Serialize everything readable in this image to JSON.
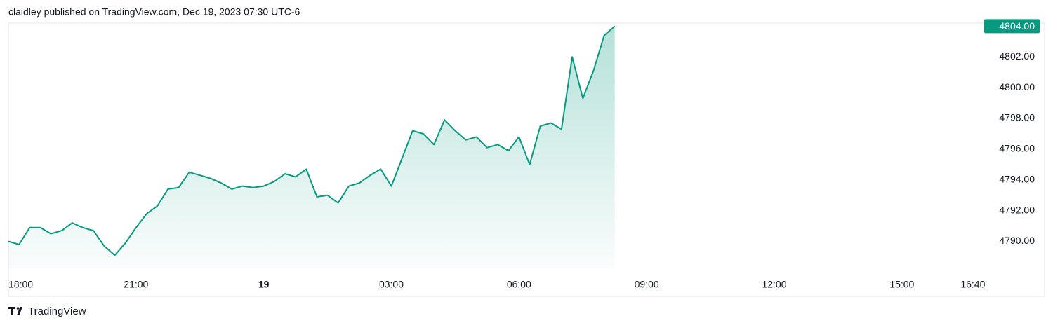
{
  "chart_data": {
    "type": "area",
    "title": "claidley published on TradingView.com, Dec 19, 2023 07:30 UTC-6",
    "brand": "TradingView",
    "color": "#089981",
    "x": [
      0,
      0.25,
      0.5,
      0.75,
      1,
      1.25,
      1.5,
      1.75,
      2,
      2.25,
      2.5,
      2.75,
      3,
      3.25,
      3.5,
      3.75,
      4,
      4.25,
      4.5,
      4.75,
      5,
      5.25,
      5.5,
      5.75,
      6,
      6.25,
      6.5,
      6.75,
      7,
      7.25,
      7.5,
      7.75,
      8,
      8.25,
      8.5,
      8.75,
      9,
      9.25,
      9.5,
      9.75,
      10,
      10.25,
      10.5,
      10.75,
      11,
      11.25,
      11.5,
      11.75,
      12,
      12.25,
      12.5,
      12.75,
      13,
      13.25,
      13.5,
      13.75,
      14,
      14.25
    ],
    "values": [
      4790.0,
      4789.8,
      4790.9,
      4790.9,
      4790.5,
      4790.7,
      4791.2,
      4790.9,
      4790.7,
      4789.7,
      4789.1,
      4789.9,
      4790.9,
      4791.8,
      4792.3,
      4793.4,
      4793.5,
      4794.5,
      4794.3,
      4794.1,
      4793.8,
      4793.4,
      4793.6,
      4793.5,
      4793.6,
      4793.9,
      4794.4,
      4794.2,
      4794.7,
      4792.9,
      4793.0,
      4792.5,
      4793.6,
      4793.8,
      4794.3,
      4794.7,
      4793.6,
      4795.4,
      4797.2,
      4797.0,
      4796.3,
      4797.9,
      4797.2,
      4796.6,
      4796.8,
      4796.1,
      4796.3,
      4795.9,
      4796.8,
      4795.0,
      4797.5,
      4797.7,
      4797.3,
      4802.0,
      4799.3,
      4801.1,
      4803.4,
      4804.0
    ],
    "last_price": {
      "value": 4804,
      "label": "4804.00"
    },
    "xlim": [
      0,
      22.9
    ],
    "xticks": [
      {
        "value": 0,
        "label": "18:00"
      },
      {
        "value": 3,
        "label": "21:00"
      },
      {
        "value": 6,
        "label": "19"
      },
      {
        "value": 9,
        "label": "03:00"
      },
      {
        "value": 12,
        "label": "06:00"
      },
      {
        "value": 15,
        "label": "09:00"
      },
      {
        "value": 18,
        "label": "12:00"
      },
      {
        "value": 21,
        "label": "15:00"
      },
      {
        "value": 22.667,
        "label": "16:40"
      }
    ],
    "ylim": [
      4787.7,
      4804.2
    ],
    "yticks": [
      {
        "value": 4790,
        "label": "4790.00"
      },
      {
        "value": 4792,
        "label": "4792.00"
      },
      {
        "value": 4794,
        "label": "4794.00"
      },
      {
        "value": 4796,
        "label": "4796.00"
      },
      {
        "value": 4798,
        "label": "4798.00"
      },
      {
        "value": 4800,
        "label": "4800.00"
      },
      {
        "value": 4802,
        "label": "4802.00"
      }
    ]
  }
}
